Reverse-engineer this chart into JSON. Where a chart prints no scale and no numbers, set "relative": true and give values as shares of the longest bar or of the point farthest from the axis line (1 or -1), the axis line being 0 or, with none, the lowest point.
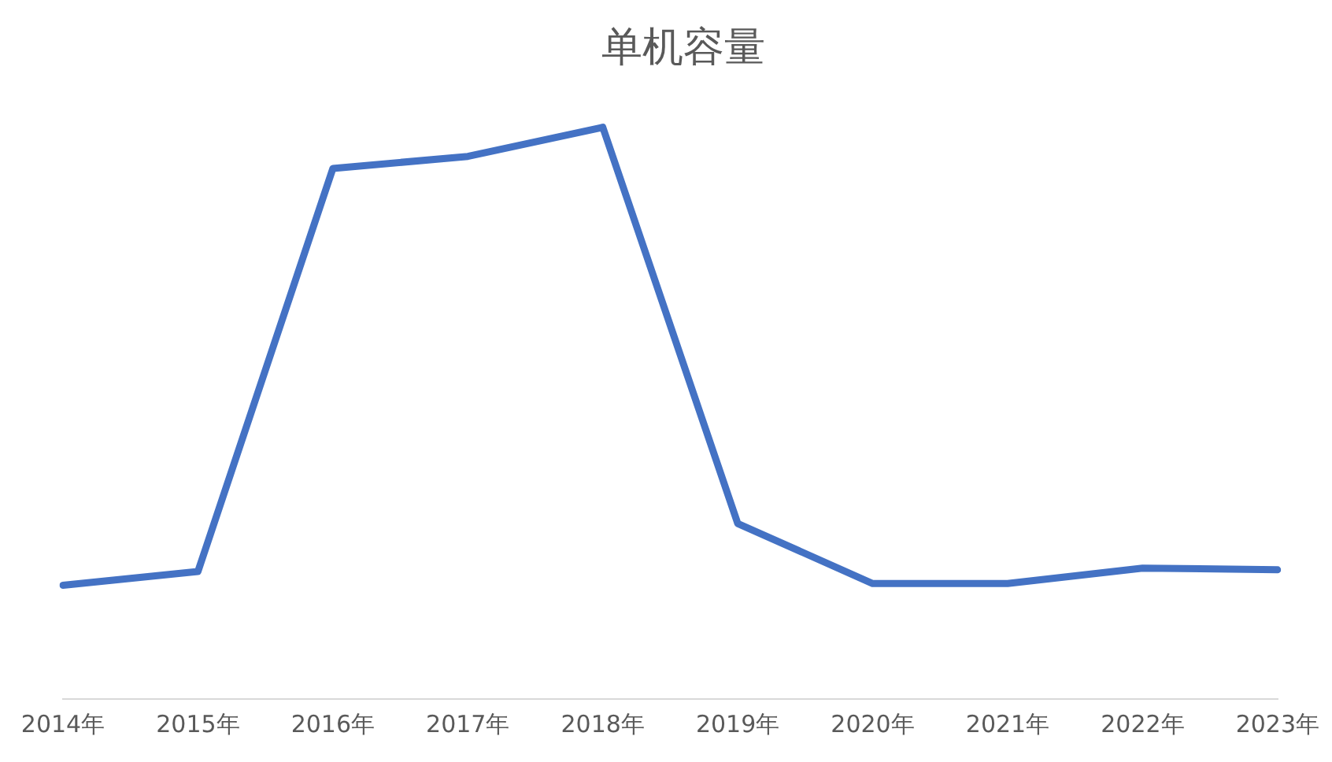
{
  "chart_data": {
    "type": "line",
    "title": "单机容量",
    "relative": true,
    "categories": [
      "2014年",
      "2015年",
      "2016年",
      "2017年",
      "2018年",
      "2019年",
      "2020年",
      "2021年",
      "2022年",
      "2023年"
    ],
    "series": [
      {
        "color": "#4472c4",
        "values": [
          0.199,
          0.223,
          0.928,
          0.949,
          1,
          0.307,
          0.202,
          0.202,
          0.229,
          0.226
        ]
      }
    ],
    "legend": false,
    "marker": "none",
    "line_style": "solid"
  }
}
